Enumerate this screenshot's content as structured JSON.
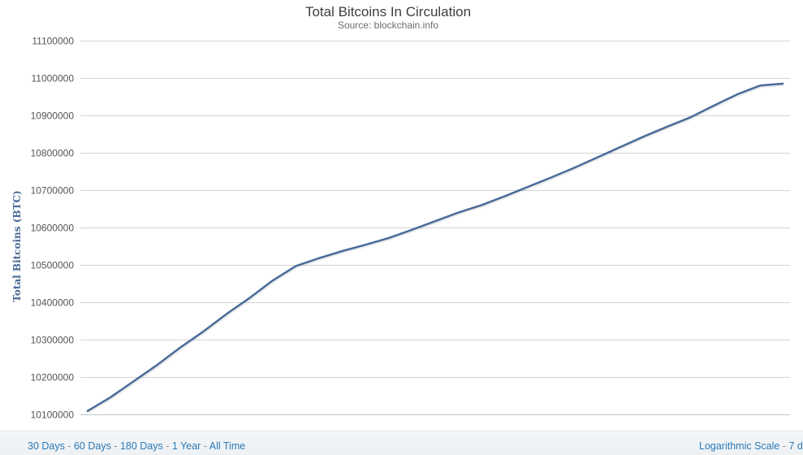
{
  "chart_data": {
    "type": "line",
    "title": "Total Bitcoins In Circulation",
    "subtitle": "Source: blockchain.info",
    "ylabel": "Total Bitcoins (BTC)",
    "xlabel": "",
    "ylim": [
      10100000,
      11100000
    ],
    "yticks": [
      10100000,
      10200000,
      10300000,
      10400000,
      10500000,
      10600000,
      10700000,
      10800000,
      10900000,
      11000000,
      11100000
    ],
    "grid": true,
    "line_color": "#4a6b9a",
    "x": [
      0,
      3,
      6,
      9,
      12,
      15,
      18,
      21,
      24,
      27,
      30,
      33,
      36,
      39,
      42,
      45,
      48,
      51,
      54,
      57,
      60,
      63,
      66,
      69,
      72,
      75,
      78,
      81,
      84,
      87,
      90
    ],
    "series": [
      {
        "values": [
          10108000,
          10145000,
          10188000,
          10231000,
          10278000,
          10321000,
          10368000,
          10411000,
          10458000,
          10497000,
          10518000,
          10537000,
          10554000,
          10572000,
          10594000,
          10617000,
          10640000,
          10660000,
          10684000,
          10709000,
          10734000,
          10760000,
          10788000,
          10816000,
          10844000,
          10870000,
          10895000,
          10926000,
          10956000,
          10980000,
          10985000
        ]
      }
    ]
  },
  "footer": {
    "range_links": [
      "30 Days",
      "60 Days",
      "180 Days",
      "1 Year",
      "All Time"
    ],
    "separator": " - ",
    "scale_links": [
      "Logarithmic Scale",
      "7 d"
    ]
  }
}
